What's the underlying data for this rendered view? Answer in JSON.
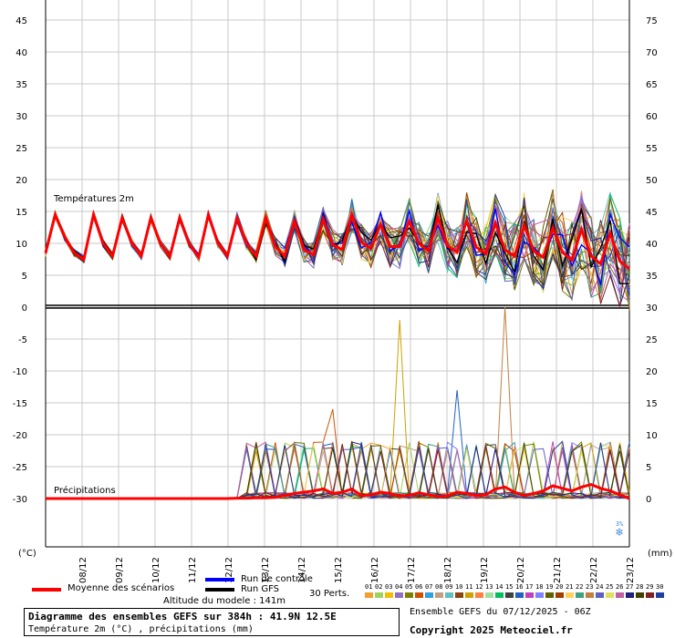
{
  "chart_data": {
    "type": "line",
    "title": "Diagramme des ensembles GEFS sur 384h : 41.9N 12.5E",
    "subtitle": "Température 2m (°C) , précipitations (mm)",
    "panels": [
      {
        "name": "Températures 2m",
        "unit": "(°C)",
        "ylim": [
          0,
          45
        ],
        "y_ticks": [
          0,
          5,
          10,
          15,
          20,
          25,
          30,
          35,
          40,
          45
        ]
      },
      {
        "name": "Précipitations",
        "unit": "(mm)",
        "ylim": [
          0,
          30
        ],
        "y_ticks": [
          0,
          5,
          10,
          15,
          20,
          25,
          30
        ]
      }
    ],
    "left_axis_ticks": [
      45,
      40,
      35,
      30,
      25,
      20,
      15,
      10,
      5,
      0,
      -5,
      -10,
      -15,
      -20,
      -25,
      -30
    ],
    "right_axis_ticks": [
      75,
      70,
      65,
      60,
      55,
      50,
      45,
      40,
      35,
      30,
      25,
      20,
      15,
      10,
      5,
      0
    ],
    "left_unit": "(°C)",
    "right_unit": "(mm)",
    "x_labels": [
      "08/12",
      "09/12",
      "10/12",
      "11/12",
      "12/12",
      "13/12",
      "14/12",
      "15/12",
      "16/12",
      "17/12",
      "18/12",
      "19/12",
      "20/12",
      "21/12",
      "22/12",
      "23/12"
    ],
    "temp_mean": [
      8.5,
      14.5,
      11,
      8.5,
      7.5,
      14.5,
      10,
      8,
      14,
      10,
      8,
      14,
      10,
      8,
      14,
      10,
      7.8,
      14.5,
      10,
      8,
      14,
      10,
      8,
      14,
      9.5,
      8,
      13.5,
      9,
      8.2,
      13.8,
      9.8,
      9,
      14.5,
      10.2,
      9.2,
      13,
      9.5,
      9.5,
      13.5,
      10,
      8.8,
      14,
      9.6,
      8.6,
      13.6,
      9.4,
      8.4,
      13.2,
      9,
      8,
      12.8,
      8.8,
      7.8,
      12.4,
      8.6,
      7.4,
      12.2,
      8,
      6.8,
      11.6,
      7.2,
      6
    ],
    "precip_mean": [
      0,
      0,
      0,
      0,
      0,
      0,
      0,
      0,
      0,
      0,
      0,
      0,
      0,
      0,
      0,
      0,
      0,
      0,
      0,
      0,
      0.05,
      0.05,
      0.1,
      0.1,
      0.2,
      0.5,
      0.8,
      1,
      1.2,
      1.5,
      0.8,
      1,
      1.5,
      0.5,
      0.6,
      1,
      0.8,
      0.4,
      0.5,
      0.9,
      0.6,
      0.3,
      0.4,
      1,
      0.8,
      0.5,
      0.6,
      1.5,
      1.8,
      1,
      0.5,
      0.8,
      1.2,
      2,
      1.6,
      1.2,
      1.8,
      2.2,
      1.6,
      1.2,
      0.6,
      0
    ],
    "snow_label": "3%"
  },
  "labels": {
    "temp_panel": "Températures 2m",
    "precip_panel": "Précipitations",
    "mean_label": "Moyenne des scénarios",
    "control_label": "Run de contrôle",
    "gfs_label": "Run GFS",
    "altitude": "Altitude du modele : 141m",
    "perts": "30 Perts.",
    "footer_title": "Diagramme des ensembles GEFS sur 384h : 41.9N 12.5E",
    "footer_sub": "Température 2m (°C) , précipitations (mm)",
    "ensemble": "Ensemble GEFS du 07/12/2025 - 06Z",
    "copyright": "Copyright 2025 Meteociel.fr"
  },
  "colors": {
    "mean": "#ff0000",
    "control": "#0000ff",
    "gfs": "#000000",
    "grid": "#c8c8c8"
  },
  "perturbations": [
    {
      "id": "01",
      "color": "#f0a030"
    },
    {
      "id": "02",
      "color": "#a0d060"
    },
    {
      "id": "03",
      "color": "#f0c000"
    },
    {
      "id": "04",
      "color": "#9070c0"
    },
    {
      "id": "05",
      "color": "#808000"
    },
    {
      "id": "06",
      "color": "#d05000"
    },
    {
      "id": "07",
      "color": "#30a0e0"
    },
    {
      "id": "08",
      "color": "#c0a080"
    },
    {
      "id": "09",
      "color": "#60c0c0"
    },
    {
      "id": "10",
      "color": "#8b4513"
    },
    {
      "id": "11",
      "color": "#d0a000"
    },
    {
      "id": "12",
      "color": "#ff8040"
    },
    {
      "id": "13",
      "color": "#a0e0a0"
    },
    {
      "id": "14",
      "color": "#00c060"
    },
    {
      "id": "15",
      "color": "#404040"
    },
    {
      "id": "16",
      "color": "#2060c0"
    },
    {
      "id": "17",
      "color": "#c040c0"
    },
    {
      "id": "18",
      "color": "#8080ff"
    },
    {
      "id": "19",
      "color": "#606000"
    },
    {
      "id": "20",
      "color": "#a04000"
    },
    {
      "id": "21",
      "color": "#ffd060"
    },
    {
      "id": "22",
      "color": "#40a080"
    },
    {
      "id": "23",
      "color": "#c08040"
    },
    {
      "id": "24",
      "color": "#6060c0"
    },
    {
      "id": "25",
      "color": "#e0e060"
    },
    {
      "id": "26",
      "color": "#c060a0"
    },
    {
      "id": "27",
      "color": "#202080"
    },
    {
      "id": "28",
      "color": "#404000"
    },
    {
      "id": "29",
      "color": "#802020"
    },
    {
      "id": "30",
      "color": "#2040a0"
    }
  ]
}
